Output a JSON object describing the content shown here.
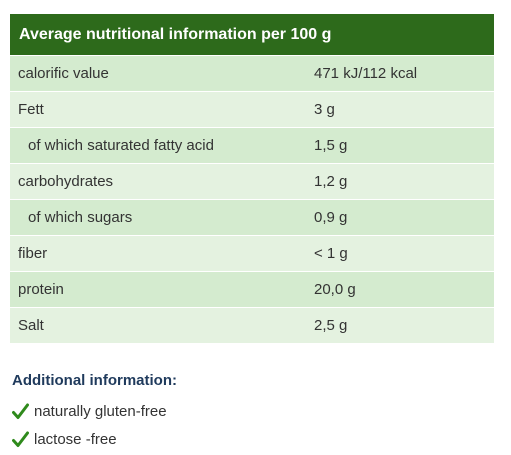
{
  "table": {
    "title": "Average nutritional information per 100 g",
    "rows": [
      [
        "calorific value",
        "471 kJ/112 kcal"
      ],
      [
        "Fett",
        "3 g"
      ],
      [
        "of which saturated fatty acid",
        "1,5 g"
      ],
      [
        "carbohydrates",
        "1,2 g"
      ],
      [
        "of which sugars",
        "0,9 g"
      ],
      [
        "fiber",
        "< 1 g"
      ],
      [
        "protein",
        "20,0 g"
      ],
      [
        "Salt",
        "2,5 g"
      ]
    ]
  },
  "additional": {
    "title": "Additional information:",
    "items": [
      "naturally gluten-free",
      "lactose -free"
    ]
  }
}
